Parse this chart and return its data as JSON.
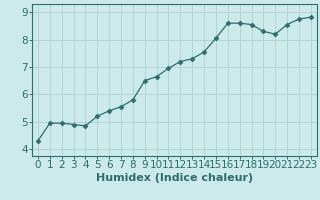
{
  "x": [
    0,
    1,
    2,
    3,
    4,
    5,
    6,
    7,
    8,
    9,
    10,
    11,
    12,
    13,
    14,
    15,
    16,
    17,
    18,
    19,
    20,
    21,
    22,
    23
  ],
  "y": [
    4.3,
    4.95,
    4.95,
    4.9,
    4.85,
    5.2,
    5.4,
    5.55,
    5.8,
    6.5,
    6.65,
    6.95,
    7.2,
    7.3,
    7.55,
    8.05,
    8.6,
    8.6,
    8.55,
    8.3,
    8.2,
    8.55,
    8.75,
    8.82
  ],
  "line_color": "#2d6e6e",
  "marker": "D",
  "marker_size": 2.5,
  "bg_color": "#cceaea",
  "grid_color": "#b0d0d0",
  "xlabel": "Humidex (Indice chaleur)",
  "ylim": [
    3.75,
    9.3
  ],
  "xlim": [
    -0.5,
    23.5
  ],
  "yticks": [
    4,
    5,
    6,
    7,
    8,
    9
  ],
  "xlabel_fontsize": 8,
  "tick_fontsize": 7.5
}
